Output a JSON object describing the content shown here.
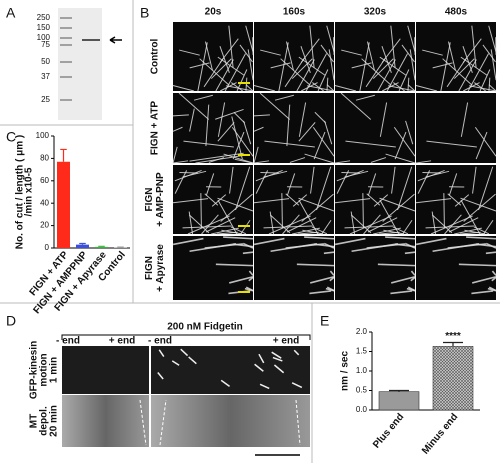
{
  "panel_labels": [
    "A",
    "B",
    "C",
    "D",
    "E"
  ],
  "gel": {
    "markers": [
      "250",
      "150",
      "100",
      "75",
      "50",
      "37",
      "25"
    ]
  },
  "timelapse": {
    "times": [
      "20s",
      "160s",
      "320s",
      "480s"
    ],
    "rows": [
      [
        "Control"
      ],
      [
        "FIGN + ATP"
      ],
      [
        "FIGN",
        "+ AMP-PNP"
      ],
      [
        "FIGN",
        "+ Apyrase"
      ]
    ]
  },
  "kymograph": {
    "title": "200 nM Fidgetin",
    "ends": [
      "- end",
      "+ end",
      "- end",
      "+ end"
    ],
    "rows": [
      [
        "GFP-kinesin",
        "motion",
        "1 min"
      ],
      [
        "MT",
        "depol.",
        "20 min"
      ]
    ]
  },
  "chart_data": [
    {
      "type": "bar",
      "y_label": [
        "No. of cut / length ( μm )",
        "/min x10-5"
      ],
      "categories": [
        "FIGN + ATP",
        "FIGN + AMPPNP",
        "FIGN + Apyrase",
        "Control"
      ],
      "values": [
        77,
        3,
        1,
        0.5
      ],
      "errors": [
        11,
        1,
        0.5,
        0.3
      ],
      "colors": [
        "#ff2a1a",
        "#3d4fd8",
        "#3cb043",
        "#999999"
      ],
      "ylim": [
        0,
        100
      ],
      "yticks": [
        0,
        20,
        40,
        60,
        80,
        100
      ]
    },
    {
      "type": "bar",
      "y_label": [
        "nm / sec"
      ],
      "categories": [
        "Plus end",
        "Minus end"
      ],
      "values": [
        0.47,
        1.63
      ],
      "errors": [
        0.03,
        0.1
      ],
      "colors": [
        "#9a9a9a",
        "url(#hatch)"
      ],
      "ylim": [
        0,
        2
      ],
      "yticks": [
        {
          "value": 0,
          "label": "0.0"
        },
        0.5,
        {
          "value": 1,
          "label": "1.0"
        },
        1.5,
        {
          "value": 2,
          "label": "2.0"
        }
      ],
      "annotations": [
        "****"
      ]
    }
  ]
}
